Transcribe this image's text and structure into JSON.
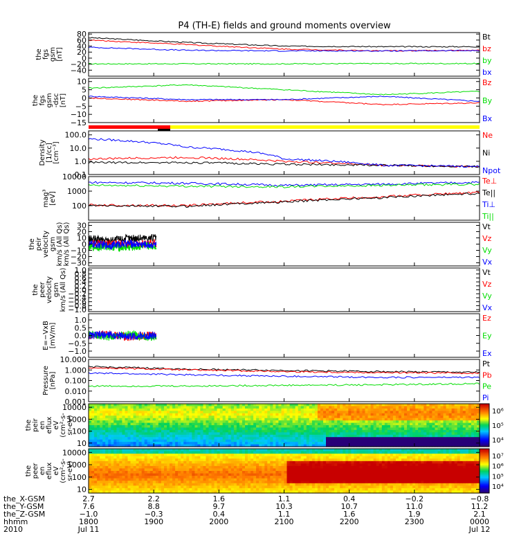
{
  "title": "P4 (TH-E) fields and ground moments overview",
  "colors": {
    "black": "#000000",
    "red": "#ff0000",
    "green": "#00dd00",
    "blue": "#0000ff",
    "yellow": "#ffff00"
  },
  "chart_data": [
    {
      "type": "line",
      "panel": "fgs_gsm",
      "ylabel": [
        "the",
        "fgs",
        "gsm",
        "[nT]"
      ],
      "ylim": [
        -60,
        85
      ],
      "ticks": [
        "80",
        "60",
        "40",
        "20",
        "0",
        "−20",
        "−40"
      ],
      "tick_values": [
        80,
        60,
        40,
        20,
        0,
        -20,
        -40
      ],
      "x": [
        0,
        0.25,
        0.5,
        0.75,
        1
      ],
      "series": [
        {
          "name": "Bt",
          "color": "#000000",
          "values": [
            68,
            52,
            40,
            38,
            38
          ]
        },
        {
          "name": "bz",
          "color": "#ff0000",
          "values": [
            60,
            45,
            30,
            24,
            26
          ]
        },
        {
          "name": "by",
          "color": "#00dd00",
          "values": [
            -19,
            -19,
            -19,
            -18,
            -18
          ]
        },
        {
          "name": "bx",
          "color": "#0000ff",
          "values": [
            36,
            26,
            24,
            24,
            25
          ]
        }
      ]
    },
    {
      "type": "line",
      "panel": "fgs_gsm_dsc",
      "ylabel": [
        "the",
        "fgs",
        "gsm",
        "-dsc",
        "[nT]"
      ],
      "ylim": [
        -15,
        12
      ],
      "ticks": [
        "10",
        "5",
        "0",
        "−5",
        "−10",
        "−15"
      ],
      "tick_values": [
        10,
        5,
        0,
        -5,
        -10,
        -15
      ],
      "x": [
        0,
        0.25,
        0.5,
        0.75,
        1
      ],
      "series": [
        {
          "name": "Bz",
          "color": "#ff0000",
          "values": [
            0,
            -2,
            -1,
            -4,
            -3
          ]
        },
        {
          "name": "By",
          "color": "#00dd00",
          "values": [
            6,
            8,
            5,
            2,
            4
          ]
        },
        {
          "name": "Bx",
          "color": "#0000ff",
          "values": [
            1,
            -1,
            -1,
            1,
            -2
          ]
        }
      ]
    },
    {
      "type": "line",
      "panel": "density",
      "ylabel": [
        "Density",
        "[1/cc]",
        "[cm⁻³]"
      ],
      "log": true,
      "ylim": [
        0.1,
        200
      ],
      "ticks": [
        "100.0",
        "10.0",
        "1.0",
        "0.1"
      ],
      "tick_values": [
        100,
        10,
        1,
        0.1
      ],
      "x": [
        0,
        0.25,
        0.5,
        0.75,
        1
      ],
      "series": [
        {
          "name": "Ne",
          "color": "#ff0000",
          "values": [
            1.5,
            2.0,
            1.0,
            0.5,
            0.4
          ]
        },
        {
          "name": "Ni",
          "color": "#000000",
          "values": [
            0.8,
            0.8,
            0.6,
            0.5,
            0.4
          ]
        },
        {
          "name": "Npot",
          "color": "#0000ff",
          "values": [
            50,
            12,
            1.5,
            0.5,
            0.4
          ]
        }
      ]
    },
    {
      "type": "line",
      "panel": "temperature",
      "ylabel": [
        "mag³",
        "[eV]"
      ],
      "log": true,
      "ylim": [
        10,
        10000
      ],
      "ticks": [
        "10000",
        "1000",
        "100"
      ],
      "tick_values": [
        10000,
        1000,
        100
      ],
      "x": [
        0,
        0.25,
        0.5,
        0.75,
        1
      ],
      "series": [
        {
          "name": "Te⊥",
          "color": "#ff0000",
          "values": [
            110,
            100,
            200,
            400,
            800
          ]
        },
        {
          "name": "Te||",
          "color": "#000000",
          "values": [
            100,
            90,
            180,
            350,
            700
          ]
        },
        {
          "name": "Ti⊥",
          "color": "#0000ff",
          "values": [
            4000,
            3500,
            2500,
            3000,
            4000
          ]
        },
        {
          "name": "Ti||",
          "color": "#00dd00",
          "values": [
            2500,
            2200,
            2000,
            2500,
            3000
          ]
        }
      ]
    },
    {
      "type": "line",
      "panel": "peir_velocity",
      "ylabel": [
        "the",
        "peir",
        "velocity",
        "gsm",
        "km/s (All Qs)",
        "km/s (All Qs)"
      ],
      "ylim": [
        -35,
        35
      ],
      "ticks": [
        "30",
        "20",
        "10",
        "0",
        "−10",
        "−20",
        "−30"
      ],
      "tick_values": [
        30,
        20,
        10,
        0,
        -10,
        -20,
        -30
      ],
      "data_end": 0.173,
      "x": [
        0,
        0.05,
        0.1,
        0.15
      ],
      "series": [
        {
          "name": "Vt",
          "color": "#000000",
          "values": [
            8,
            6,
            9,
            10
          ]
        },
        {
          "name": "Vz",
          "color": "#ff0000",
          "values": [
            0,
            1,
            0,
            1
          ]
        },
        {
          "name": "Vy",
          "color": "#00dd00",
          "values": [
            -5,
            -4,
            -6,
            -3
          ]
        },
        {
          "name": "Vx",
          "color": "#0000ff",
          "values": [
            0,
            -2,
            1,
            -1
          ]
        }
      ]
    },
    {
      "type": "line",
      "panel": "peer_velocity",
      "ylabel": [
        "the",
        "peer",
        "velocity",
        "gsm",
        "km/s (All Qs)"
      ],
      "ylim": [
        -1.1,
        1.1
      ],
      "ticks": [
        "1.0",
        "0.8",
        "0.6",
        "0.4",
        "0.2",
        "0.0",
        "−0.2",
        "−0.4",
        "−0.6",
        "−0.8",
        "−1.0"
      ],
      "tick_values": [
        1,
        0.8,
        0.6,
        0.4,
        0.2,
        0,
        -0.2,
        -0.4,
        -0.6,
        -0.8,
        -1
      ],
      "series": [
        {
          "name": "Vt",
          "color": "#000000",
          "values": []
        },
        {
          "name": "Vz",
          "color": "#ff0000",
          "values": []
        },
        {
          "name": "Vy",
          "color": "#00dd00",
          "values": []
        },
        {
          "name": "Vx",
          "color": "#0000ff",
          "values": []
        }
      ]
    },
    {
      "type": "line",
      "panel": "efield",
      "ylabel": [
        "E=−VxB",
        "[mV/m]"
      ],
      "ylim": [
        -1.4,
        1.4
      ],
      "ticks": [
        "1.0",
        "0.5",
        "0.0",
        "−0.5",
        "−1.0"
      ],
      "tick_values": [
        1,
        0.5,
        0,
        -0.5,
        -1
      ],
      "data_end": 0.173,
      "x": [
        0,
        0.05,
        0.1,
        0.15
      ],
      "series": [
        {
          "name": "Ez",
          "color": "#ff0000",
          "values": [
            0,
            0.1,
            -0.1,
            0
          ]
        },
        {
          "name": "Ey",
          "color": "#00dd00",
          "values": [
            0.1,
            -0.1,
            0.1,
            -0.1
          ]
        },
        {
          "name": "Ex",
          "color": "#0000ff",
          "values": [
            0,
            0.05,
            -0.05,
            0
          ]
        }
      ]
    },
    {
      "type": "line",
      "panel": "pressure",
      "ylabel": [
        "Pressure",
        "[nPa]"
      ],
      "log": true,
      "ylim": [
        0.001,
        10
      ],
      "ticks": [
        "10.000",
        "1.000",
        "0.100",
        "0.010",
        "0.001"
      ],
      "tick_values": [
        10,
        1,
        0.1,
        0.01,
        0.001
      ],
      "x": [
        0,
        0.25,
        0.5,
        0.75,
        1
      ],
      "series": [
        {
          "name": "Pt",
          "color": "#000000",
          "values": [
            2.0,
            1.2,
            0.9,
            0.7,
            0.6
          ]
        },
        {
          "name": "Pb",
          "color": "#ff0000",
          "values": [
            1.6,
            1.0,
            0.7,
            0.55,
            0.5
          ]
        },
        {
          "name": "Pe",
          "color": "#00dd00",
          "values": [
            0.03,
            0.03,
            0.035,
            0.04,
            0.05
          ]
        },
        {
          "name": "Pi",
          "color": "#0000ff",
          "values": [
            0.5,
            0.35,
            0.25,
            0.2,
            0.2
          ]
        }
      ]
    },
    {
      "type": "heatmap",
      "panel": "peir_en_eflux",
      "ylabel": [
        "the",
        "peir",
        "en",
        "eflux",
        "eV",
        "(cm²-s-",
        "sr-eV)"
      ],
      "log": true,
      "ylim": [
        5,
        20000
      ],
      "ticks": [
        "10000",
        "1000",
        "100",
        "10"
      ],
      "tick_values": [
        10000,
        1000,
        100,
        10
      ],
      "colorbar_labels": [
        "10⁶",
        "10⁵",
        "10⁴"
      ]
    },
    {
      "type": "heatmap",
      "panel": "peer_en_eflux",
      "ylabel": [
        "the",
        "peer",
        "en",
        "eflux",
        "eV",
        "(cm²-s-",
        "sr-eV)"
      ],
      "log": true,
      "ylim": [
        5,
        20000
      ],
      "ticks": [
        "10000",
        "1000",
        "100",
        "10"
      ],
      "tick_values": [
        10000,
        1000,
        100,
        10
      ],
      "colorbar_labels": [
        "10⁷",
        "10⁶",
        "10⁵",
        "10⁴"
      ]
    }
  ],
  "xaxis": {
    "row_labels": [
      "the_X-GSM",
      "the_Y-GSM",
      "the_Z-GSM",
      "hhmm",
      "2010"
    ],
    "columns": [
      {
        "values": [
          "2.7",
          "7.6",
          "−1.0",
          "1800",
          "Jul 11"
        ]
      },
      {
        "values": [
          "2.2",
          "8.8",
          "−0.3",
          "1900",
          ""
        ]
      },
      {
        "values": [
          "1.6",
          "9.7",
          "0.4",
          "2000",
          ""
        ]
      },
      {
        "values": [
          "1.1",
          "10.3",
          "1.1",
          "2100",
          ""
        ]
      },
      {
        "values": [
          "0.4",
          "10.7",
          "1.6",
          "2200",
          ""
        ]
      },
      {
        "values": [
          "−0.2",
          "11.0",
          "1.9",
          "2300",
          ""
        ]
      },
      {
        "values": [
          "−0.8",
          "11.2",
          "2.1",
          "0000",
          "Jul 12"
        ]
      }
    ]
  }
}
